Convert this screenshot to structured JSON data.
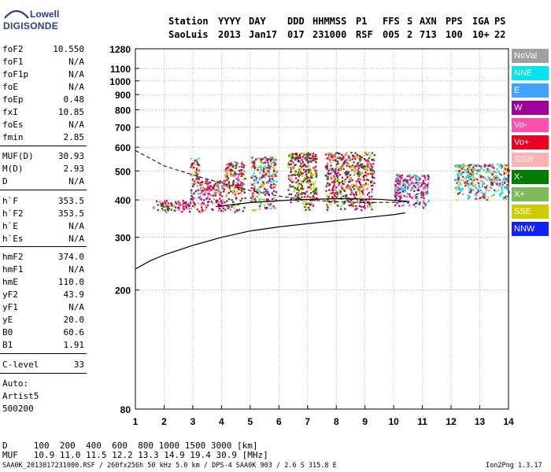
{
  "logo": {
    "top": "Lowell",
    "bottom": "DIGISONDE"
  },
  "header": {
    "cols": [
      {
        "label": "Station",
        "value": "SaoLuis",
        "x": 214
      },
      {
        "label": "YYYY",
        "value": "2013",
        "x": 277
      },
      {
        "label": "DAY",
        "value": "Jan17",
        "x": 316
      },
      {
        "label": "DDD",
        "value": "017",
        "x": 365
      },
      {
        "label": "HHMMSS",
        "value": "231000",
        "x": 397
      },
      {
        "label": "P1",
        "value": "RSF",
        "x": 452
      },
      {
        "label": "FFS",
        "value": "005",
        "x": 486
      },
      {
        "label": "S",
        "value": "2",
        "x": 517
      },
      {
        "label": "AXN",
        "value": "713",
        "x": 533
      },
      {
        "label": "PPS",
        "value": "100",
        "x": 566
      },
      {
        "label": "IGA",
        "value": "10+",
        "x": 600
      },
      {
        "label": "PS",
        "value": "22",
        "x": 628
      }
    ]
  },
  "params": [
    {
      "key": "foF2",
      "value": "10.550",
      "y": 56
    },
    {
      "key": "foF1",
      "value": "N/A",
      "y": 72
    },
    {
      "key": "foF1p",
      "value": "N/A",
      "y": 88
    },
    {
      "key": "foE",
      "value": "N/A",
      "y": 104
    },
    {
      "key": "foEp",
      "value": "0.48",
      "y": 120
    },
    {
      "key": "fxI",
      "value": "10.85",
      "y": 136
    },
    {
      "key": "foEs",
      "value": "N/A",
      "y": 152
    },
    {
      "key": "fmin",
      "value": "2.85",
      "y": 168
    },
    {
      "key": "MUF(D)",
      "value": "30.93",
      "y": 192
    },
    {
      "key": "M(D)",
      "value": "2.93",
      "y": 208
    },
    {
      "key": "D",
      "value": "N/A",
      "y": 224
    },
    {
      "key": "h`F",
      "value": "353.5",
      "y": 249
    },
    {
      "key": "h`F2",
      "value": "353.5",
      "y": 265
    },
    {
      "key": "h`E",
      "value": "N/A",
      "y": 281
    },
    {
      "key": "h`Es",
      "value": "N/A",
      "y": 297
    },
    {
      "key": "hmF2",
      "value": "374.0",
      "y": 320
    },
    {
      "key": "hmF1",
      "value": "N/A",
      "y": 336
    },
    {
      "key": "hmE",
      "value": "110.0",
      "y": 352
    },
    {
      "key": "yF2",
      "value": "43.9",
      "y": 368
    },
    {
      "key": "yF1",
      "value": "N/A",
      "y": 384
    },
    {
      "key": "yE",
      "value": "20.0",
      "y": 400
    },
    {
      "key": "B0",
      "value": "60.6",
      "y": 416
    },
    {
      "key": "B1",
      "value": "1.91",
      "y": 432
    },
    {
      "key": "C-level",
      "value": "33",
      "y": 457
    }
  ],
  "auto": {
    "line1": "Auto:",
    "line2": "Artist5",
    "line3": "500200"
  },
  "bottom_table": {
    "row1": "D     100  200  400  600  800 1000 1500 3000 [km]",
    "row2": "MUF   10.9 11.0 11.5 12.2 13.3 14.9 19.4 30.9 [MHz]"
  },
  "footer": {
    "left": "SAA0K_2013017231000.RSF / 260fx256h 50 kHz 5.0 km / DPS-4 SAA0K 903 / 2.6 S 315.8 E",
    "right": "Ion2Png 1.3.17"
  },
  "legend": [
    {
      "label": "NoVal",
      "color": "#a0a0a0"
    },
    {
      "label": "NNE",
      "color": "#00e5ee"
    },
    {
      "label": "E",
      "color": "#3fa3ff"
    },
    {
      "label": "W",
      "color": "#a0009a"
    },
    {
      "label": "Vo-",
      "color": "#ff50b0"
    },
    {
      "label": "Vo+",
      "color": "#ee0022"
    },
    {
      "label": "SSW",
      "color": "#ffb0b0"
    },
    {
      "label": "X-",
      "color": "#007a00"
    },
    {
      "label": "X+",
      "color": "#7dbb5a"
    },
    {
      "label": "SSE",
      "color": "#cccc00"
    },
    {
      "label": "NNW",
      "color": "#1020ff"
    }
  ],
  "chart_data": {
    "type": "scatter",
    "title": "",
    "xlabel": "",
    "ylabel": "",
    "x_axis": {
      "min": 1,
      "max": 14,
      "ticks": [
        1,
        2,
        3,
        4,
        5,
        6,
        7,
        8,
        9,
        10,
        11,
        12,
        13,
        14
      ]
    },
    "y_axis": {
      "min": 80,
      "max": 1280,
      "scale": "log",
      "ticks": [
        80,
        200,
        300,
        400,
        500,
        600,
        700,
        800,
        900,
        1000,
        1100,
        1280
      ]
    },
    "grid": true,
    "clusters": [
      {
        "fmin": 1.6,
        "fmax": 2.9,
        "hmin": 365,
        "hmax": 400,
        "colors": [
          "#a0009a",
          "#ee0022",
          "#ff50b0",
          "#007a00"
        ]
      },
      {
        "fmin": 2.9,
        "fmax": 3.2,
        "hmin": 365,
        "hmax": 560,
        "colors": [
          "#a0009a",
          "#ee0022",
          "#cccc00",
          "#00e5ee"
        ]
      },
      {
        "fmin": 3.2,
        "fmax": 4.1,
        "hmin": 365,
        "hmax": 470,
        "colors": [
          "#ee0022",
          "#ff50b0",
          "#a0009a",
          "#7dbb5a"
        ]
      },
      {
        "fmin": 4.1,
        "fmax": 4.8,
        "hmin": 365,
        "hmax": 540,
        "colors": [
          "#ee0022",
          "#ff50b0",
          "#a0009a",
          "#007a00",
          "#cccc00"
        ]
      },
      {
        "fmin": 5.0,
        "fmax": 5.9,
        "hmin": 370,
        "hmax": 560,
        "colors": [
          "#cccc00",
          "#ee0022",
          "#a0009a",
          "#00e5ee"
        ]
      },
      {
        "fmin": 6.3,
        "fmax": 7.3,
        "hmin": 370,
        "hmax": 580,
        "colors": [
          "#cccc00",
          "#ee0022",
          "#a0009a",
          "#007a00"
        ]
      },
      {
        "fmin": 7.6,
        "fmax": 9.3,
        "hmin": 370,
        "hmax": 580,
        "colors": [
          "#cccc00",
          "#ee0022",
          "#a0009a",
          "#ff50b0",
          "#007a00"
        ]
      },
      {
        "fmin": 10.0,
        "fmax": 11.2,
        "hmin": 375,
        "hmax": 490,
        "colors": [
          "#ee0022",
          "#ff50b0",
          "#a0009a",
          "#00e5ee"
        ]
      },
      {
        "fmin": 12.1,
        "fmax": 14.0,
        "hmin": 400,
        "hmax": 530,
        "colors": [
          "#00e5ee",
          "#3fa3ff",
          "#cccc00",
          "#ee0022"
        ]
      }
    ],
    "profile_curve": [
      [
        1,
        235
      ],
      [
        1.5,
        250
      ],
      [
        2,
        262
      ],
      [
        3,
        282
      ],
      [
        4,
        300
      ],
      [
        5,
        315
      ],
      [
        6,
        325
      ],
      [
        7,
        333
      ],
      [
        8,
        341
      ],
      [
        9,
        349
      ],
      [
        10,
        357
      ],
      [
        10.4,
        362
      ]
    ],
    "dashed_curve": [
      [
        1,
        585
      ],
      [
        2,
        520
      ],
      [
        3,
        485
      ],
      [
        4,
        455
      ],
      [
        5,
        430
      ],
      [
        6,
        412
      ],
      [
        7,
        400
      ],
      [
        8,
        394
      ],
      [
        9,
        392
      ],
      [
        10,
        393
      ],
      [
        10.5,
        395
      ]
    ],
    "trace_curve": [
      [
        3.8,
        380
      ],
      [
        5,
        392
      ],
      [
        6.5,
        400
      ],
      [
        8,
        404
      ],
      [
        9.5,
        402
      ],
      [
        10.55,
        395
      ]
    ]
  }
}
